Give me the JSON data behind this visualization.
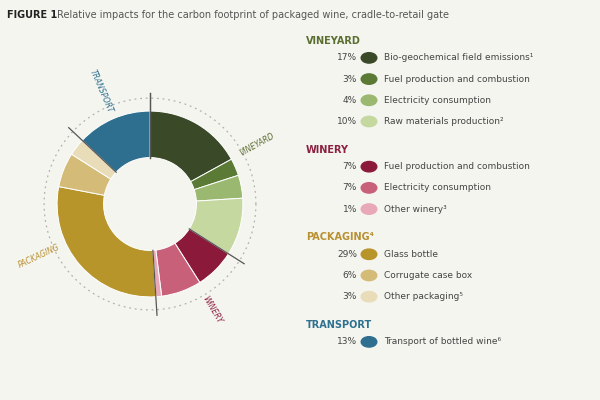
{
  "title_bold": "FIGURE 1",
  "title_rest": "Relative impacts for the carbon footprint of packaged wine, cradle-to-retail gate",
  "slices": [
    {
      "label": "Bio-geochemical field emissions¹",
      "pct": 17,
      "color": "#3a4a28",
      "group": "VINEYARD"
    },
    {
      "label": "Fuel production and combustion",
      "pct": 3,
      "color": "#5a7a35",
      "group": "VINEYARD"
    },
    {
      "label": "Electricity consumption",
      "pct": 4,
      "color": "#9ab870",
      "group": "VINEYARD"
    },
    {
      "label": "Raw materials production²",
      "pct": 10,
      "color": "#c5d8a0",
      "group": "VINEYARD"
    },
    {
      "label": "Fuel production and combustion",
      "pct": 7,
      "color": "#8b1a3a",
      "group": "WINERY"
    },
    {
      "label": "Electricity consumption",
      "pct": 7,
      "color": "#c8607a",
      "group": "WINERY"
    },
    {
      "label": "Other winery³",
      "pct": 1,
      "color": "#e8a8b8",
      "group": "WINERY"
    },
    {
      "label": "Glass bottle",
      "pct": 29,
      "color": "#b8952a",
      "group": "PACKAGING"
    },
    {
      "label": "Corrugate case box",
      "pct": 6,
      "color": "#d4bc78",
      "group": "PACKAGING"
    },
    {
      "label": "Other packaging⁵",
      "pct": 3,
      "color": "#e8ddb8",
      "group": "PACKAGING"
    },
    {
      "label": "Transport of bottled wine⁶",
      "pct": 13,
      "color": "#2e6e8e",
      "group": "TRANSPORT"
    }
  ],
  "group_colors": {
    "VINEYARD": "#5a6e30",
    "WINERY": "#8b2040",
    "PACKAGING": "#b89030",
    "TRANSPORT": "#2e7090"
  },
  "legend_items": [
    {
      "type": "header",
      "text": "VINEYARD",
      "color": "#5a6e30"
    },
    {
      "type": "item",
      "pct": "17%",
      "dot_color": "#3a4a28",
      "text": "Bio-geochemical field emissions¹"
    },
    {
      "type": "item",
      "pct": "3%",
      "dot_color": "#5a7a35",
      "text": "Fuel production and combustion"
    },
    {
      "type": "item",
      "pct": "4%",
      "dot_color": "#9ab870",
      "text": "Electricity consumption"
    },
    {
      "type": "item",
      "pct": "10%",
      "dot_color": "#c5d8a0",
      "text": "Raw materials production²"
    },
    {
      "type": "header",
      "text": "WINERY",
      "color": "#8b2040"
    },
    {
      "type": "item",
      "pct": "7%",
      "dot_color": "#8b1a3a",
      "text": "Fuel production and combustion"
    },
    {
      "type": "item",
      "pct": "7%",
      "dot_color": "#c8607a",
      "text": "Electricity consumption"
    },
    {
      "type": "item",
      "pct": "1%",
      "dot_color": "#e8a8b8",
      "text": "Other winery³"
    },
    {
      "type": "header",
      "text": "PACKAGING⁴",
      "color": "#b89030"
    },
    {
      "type": "item",
      "pct": "29%",
      "dot_color": "#b8952a",
      "text": "Glass bottle"
    },
    {
      "type": "item",
      "pct": "6%",
      "dot_color": "#d4bc78",
      "text": "Corrugate case box"
    },
    {
      "type": "item",
      "pct": "3%",
      "dot_color": "#e8ddb8",
      "text": "Other packaging⁵"
    },
    {
      "type": "header",
      "text": "TRANSPORT",
      "color": "#2e7090"
    },
    {
      "type": "item",
      "pct": "13%",
      "dot_color": "#2e6e8e",
      "text": "Transport of bottled wine⁶"
    }
  ],
  "bg_color": "#f5f5f0",
  "start_angle": 90,
  "outer_r": 1.0,
  "inner_r": 0.5
}
